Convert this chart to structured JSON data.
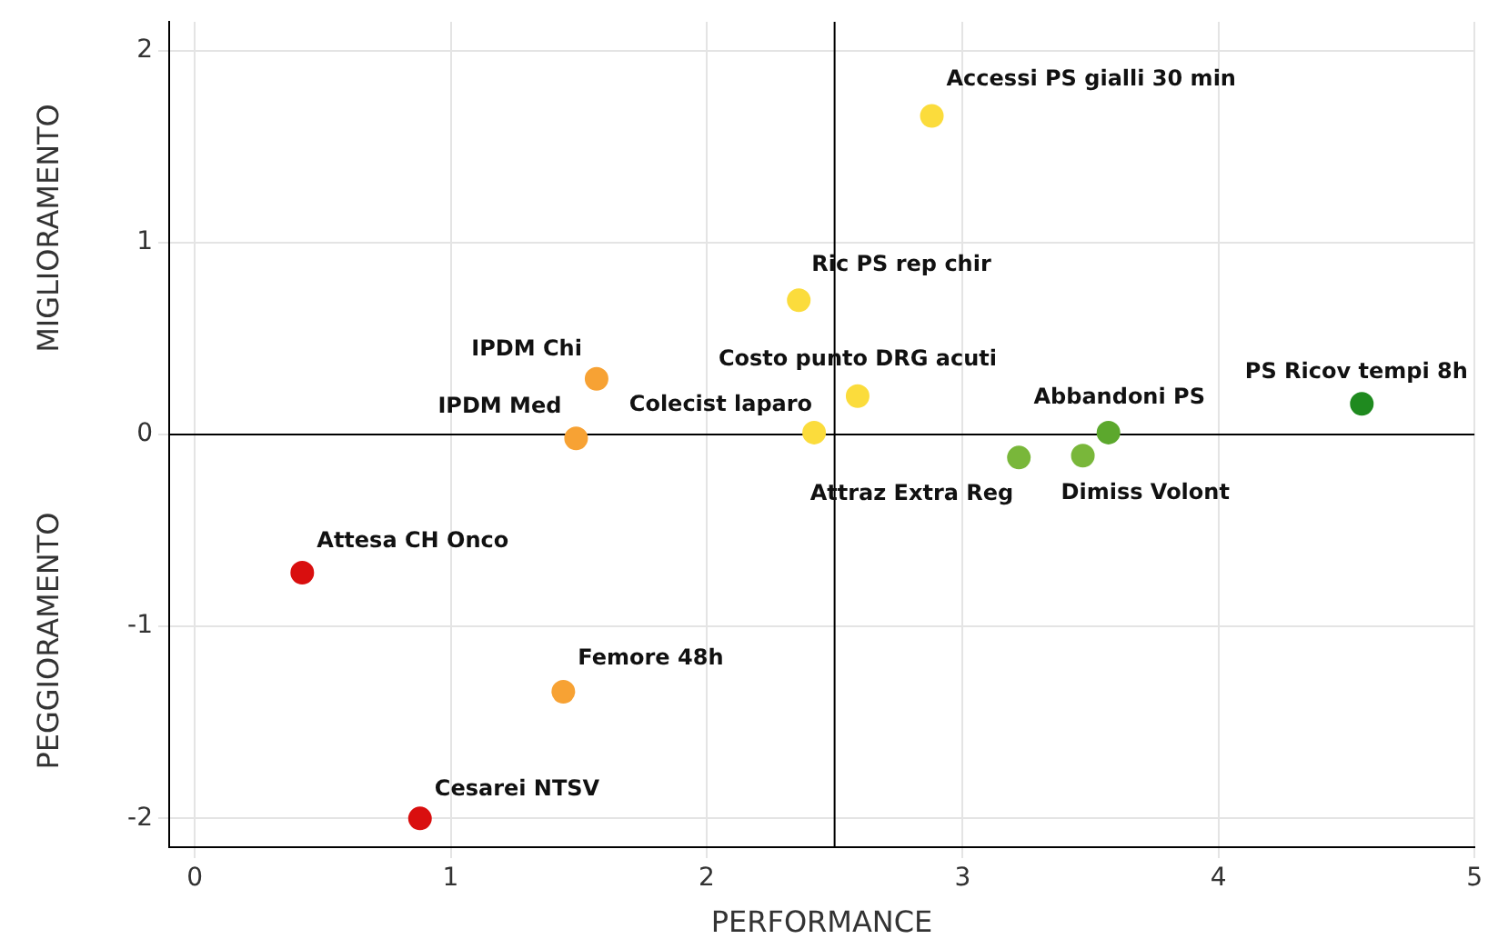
{
  "chart_data": {
    "type": "scatter",
    "xlabel": "PERFORMANCE",
    "ylabel": "MIGLIORAMENTO",
    "x": [
      2.88,
      2.36,
      1.57,
      2.59,
      1.49,
      2.42,
      3.22,
      3.47,
      3.57,
      4.56,
      0.42,
      1.44,
      0.88
    ],
    "values": [
      1.66,
      0.7,
      0.29,
      0.2,
      -0.02,
      0.01,
      -0.12,
      -0.11,
      0.01,
      0.16,
      -0.72,
      -1.34,
      -2.0
    ],
    "colors": [
      "#fbdc3c",
      "#fbdc3c",
      "#f7a234",
      "#fbdc3c",
      "#f7a234",
      "#fbdc3c",
      "#79b73a",
      "#79b73a",
      "#5ca82d",
      "#1f8a1f",
      "#d90f0f",
      "#f7a234",
      "#d90f0f"
    ],
    "xlim": [
      -0.1,
      5
    ],
    "ylim": [
      -2.15,
      2.15
    ],
    "xticks": [
      0,
      1,
      2,
      3,
      4,
      5
    ],
    "yticks": [
      -2,
      -1,
      0,
      1,
      2
    ],
    "grid": true,
    "marker": "circle",
    "ref_lines": [
      {
        "axis": "x",
        "value": 2.5,
        "color": "#000000"
      },
      {
        "axis": "y",
        "value": 0,
        "color": "#000000"
      }
    ],
    "annotations": [
      {
        "text": "Accessi PS gialli 30 min",
        "x": 2.88,
        "y": 1.66
      },
      {
        "text": "Ric PS rep chir",
        "x": 2.36,
        "y": 0.7
      },
      {
        "text": "IPDM Chi",
        "x": 1.57,
        "y": 0.29
      },
      {
        "text": "Costo punto DRG acuti",
        "x": 2.59,
        "y": 0.2
      },
      {
        "text": "IPDM Med",
        "x": 1.49,
        "y": -0.02
      },
      {
        "text": "Colecist laparo",
        "x": 2.42,
        "y": 0.01
      },
      {
        "text": "Attraz Extra Reg",
        "x": 3.22,
        "y": -0.12
      },
      {
        "text": "Dimiss Volont",
        "x": 3.47,
        "y": -0.11
      },
      {
        "text": "Abbandoni PS",
        "x": 3.57,
        "y": 0.01
      },
      {
        "text": "PS Ricov tempi 8h",
        "x": 4.56,
        "y": 0.16
      },
      {
        "text": "Attesa CH Onco",
        "x": 0.42,
        "y": -0.72
      },
      {
        "text": "Femore 48h",
        "x": 1.44,
        "y": -1.34
      },
      {
        "text": "Cesarei NTSV",
        "x": 0.88,
        "y": -2.0
      },
      "PEGGIORAMENTO"
    ]
  }
}
